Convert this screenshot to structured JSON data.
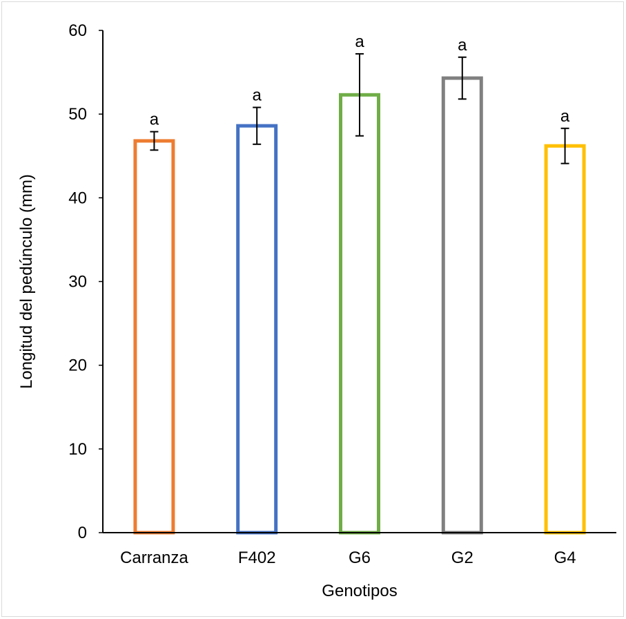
{
  "chart_data": {
    "type": "bar",
    "title": "",
    "xlabel": "Genotipos",
    "ylabel": "Longitud del pedúnculo (mm)",
    "ylim": [
      0,
      60
    ],
    "yticks": [
      0,
      10,
      20,
      30,
      40,
      50,
      60
    ],
    "grid": false,
    "categories": [
      "Carranza",
      "F402",
      "G6",
      "G2",
      "G4"
    ],
    "values": [
      46.8,
      48.6,
      52.3,
      54.3,
      46.2
    ],
    "errors": [
      1.1,
      2.2,
      4.9,
      2.5,
      2.1
    ],
    "significance_labels": [
      "a",
      "a",
      "a",
      "a",
      "a"
    ],
    "colors": [
      "#ED7D31",
      "#4472C4",
      "#70AD47",
      "#808080",
      "#FFC000"
    ],
    "bar_fill": "#ffffff"
  }
}
